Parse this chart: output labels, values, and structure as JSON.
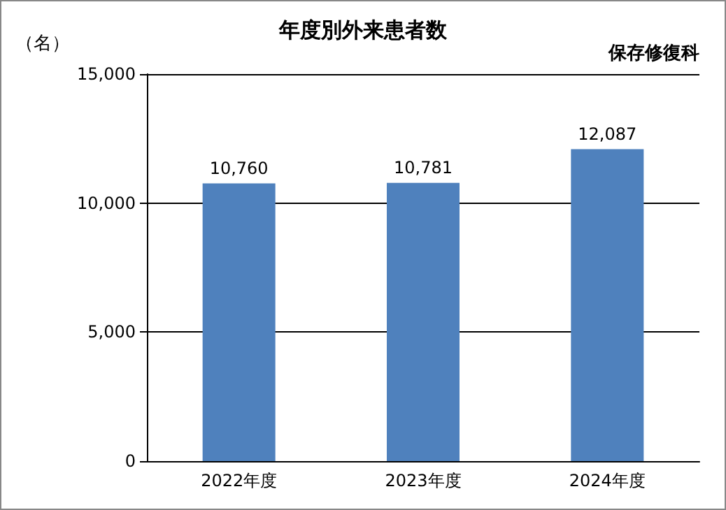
{
  "chart_data": {
    "type": "bar",
    "title": "年度別外来患者数",
    "ylabel": "（名）",
    "annotations": [
      "保存修復科"
    ],
    "categories": [
      "2022年度",
      "2023年度",
      "2024年度"
    ],
    "values": [
      10760,
      10781,
      12087
    ],
    "value_labels": [
      "10,760",
      "10,781",
      "12,087"
    ],
    "color": "#4f81bd",
    "ylim": [
      0,
      15000
    ],
    "yticks": [
      {
        "value": 0,
        "label": "0"
      },
      {
        "value": 5000,
        "label": "5,000"
      },
      {
        "value": 10000,
        "label": "10,000"
      },
      {
        "value": 15000,
        "label": "15,000"
      }
    ],
    "grid": "y"
  }
}
